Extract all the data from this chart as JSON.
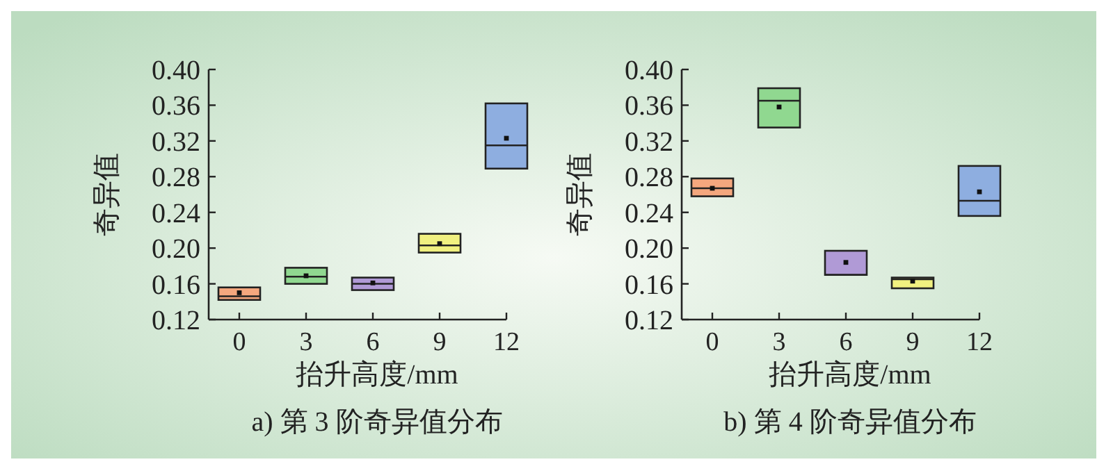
{
  "chart_data": [
    {
      "type": "box",
      "title": "a) 第 3 阶奇异值分布",
      "xlabel": "抬升高度/mm",
      "ylabel": "奇异值",
      "categories": [
        "0",
        "3",
        "6",
        "9",
        "12"
      ],
      "colors": [
        "#f4a77e",
        "#90d890",
        "#b09ad6",
        "#f0f080",
        "#8eaee0"
      ],
      "ylim": [
        0.12,
        0.4
      ],
      "yticks": [
        {
          "value": 0.12,
          "label": "0.12"
        },
        {
          "value": 0.16,
          "label": "0.16"
        },
        {
          "value": 0.2,
          "label": "0.20"
        },
        {
          "value": 0.24,
          "label": "0.24"
        },
        {
          "value": 0.28,
          "label": "0.28"
        },
        {
          "value": 0.32,
          "label": "0.32"
        },
        {
          "value": 0.36,
          "label": "0.36"
        },
        {
          "value": 0.4,
          "label": "0.40"
        }
      ],
      "boxes": [
        {
          "low": 0.142,
          "q1": 0.142,
          "median": 0.146,
          "q3": 0.156,
          "high": 0.156,
          "mean": 0.15
        },
        {
          "low": 0.16,
          "q1": 0.16,
          "median": 0.168,
          "q3": 0.178,
          "high": 0.178,
          "mean": 0.169
        },
        {
          "low": 0.153,
          "q1": 0.153,
          "median": 0.16,
          "q3": 0.167,
          "high": 0.167,
          "mean": 0.161
        },
        {
          "low": 0.195,
          "q1": 0.195,
          "median": 0.203,
          "q3": 0.216,
          "high": 0.216,
          "mean": 0.205
        },
        {
          "low": 0.289,
          "q1": 0.289,
          "median": 0.315,
          "q3": 0.362,
          "high": 0.362,
          "mean": 0.323
        }
      ]
    },
    {
      "type": "box",
      "title": "b) 第 4 阶奇异值分布",
      "xlabel": "抬升高度/mm",
      "ylabel": "奇异值",
      "categories": [
        "0",
        "3",
        "6",
        "9",
        "12"
      ],
      "colors": [
        "#f4a77e",
        "#90d890",
        "#b09ad6",
        "#f0f080",
        "#8eaee0"
      ],
      "ylim": [
        0.12,
        0.4
      ],
      "yticks": [
        {
          "value": 0.12,
          "label": "0.12"
        },
        {
          "value": 0.16,
          "label": "0.16"
        },
        {
          "value": 0.2,
          "label": "0.20"
        },
        {
          "value": 0.24,
          "label": "0.24"
        },
        {
          "value": 0.28,
          "label": "0.28"
        },
        {
          "value": 0.32,
          "label": "0.32"
        },
        {
          "value": 0.36,
          "label": "0.36"
        },
        {
          "value": 0.4,
          "label": "0.40"
        }
      ],
      "boxes": [
        {
          "low": 0.258,
          "q1": 0.258,
          "median": 0.267,
          "q3": 0.278,
          "high": 0.278,
          "mean": 0.267
        },
        {
          "low": 0.335,
          "q1": 0.335,
          "median": 0.365,
          "q3": 0.379,
          "high": 0.379,
          "mean": 0.358
        },
        {
          "low": 0.17,
          "q1": 0.17,
          "median": 0.17,
          "q3": 0.197,
          "high": 0.197,
          "mean": 0.184
        },
        {
          "low": 0.155,
          "q1": 0.155,
          "median": 0.165,
          "q3": 0.167,
          "high": 0.167,
          "mean": 0.163
        },
        {
          "low": 0.236,
          "q1": 0.236,
          "median": 0.253,
          "q3": 0.292,
          "high": 0.292,
          "mean": 0.263
        }
      ]
    }
  ]
}
